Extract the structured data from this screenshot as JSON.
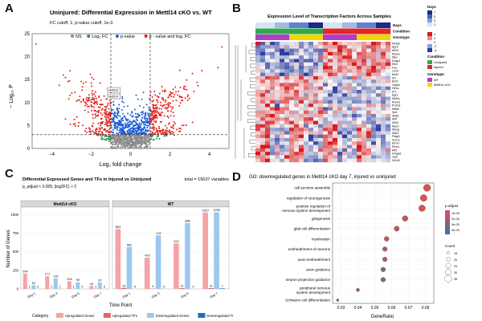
{
  "colors": {
    "ns": "#8c8c8c",
    "log2fc": "#2e8b57",
    "pval": "#1f5fd6",
    "both": "#e3221c",
    "up_genes": "#f4a3a6",
    "up_tfs": "#e06666",
    "down_genes": "#9cc8f0",
    "down_tfs": "#1f6fc0",
    "dot_low": "#3a6fb0",
    "dot_high": "#d9534f",
    "heat_low": "#2b3fa0",
    "heat_mid": "#f7f7f7",
    "heat_high": "#d7191c"
  },
  "panels": {
    "a": "A",
    "b": "B",
    "c": "C",
    "d": "D"
  },
  "chart_data": [
    {
      "panel": "A",
      "type": "scatter",
      "title": "Uninjured: Differential Expression in Mettl14 cKO vs. WT",
      "subtitle": "FC cutoff, 1; p-value cutoff, 1e-3",
      "legend": [
        {
          "key": "ns",
          "label": "NS"
        },
        {
          "key": "log2fc",
          "label": "Log₂ FC"
        },
        {
          "key": "pval",
          "label": "p-value"
        },
        {
          "key": "both",
          "label": "p - value and log₂ FC"
        }
      ],
      "xlabel": "Log₂ fold change",
      "ylabel": "− Log₁₀ P",
      "xlim": [
        -5,
        5
      ],
      "ylim": [
        0,
        25
      ],
      "xticks": [
        -4,
        -2,
        0,
        2,
        4
      ],
      "yticks": [
        0,
        5,
        10,
        15,
        20,
        25
      ],
      "fc_cutoff": 1,
      "p_cutoff_log10": 3,
      "highlight_labels": [
        "Mettl14",
        "Mettl14"
      ],
      "points": []
    },
    {
      "panel": "B",
      "type": "heatmap",
      "title": "Expression Level of Transcription Factors Across Samples",
      "row_labels": [
        "Nr4a2",
        "Egr3",
        "Klf10",
        "Ppara",
        "Myc",
        "Dusp1",
        "Elk4",
        "Fos",
        "Lhx4",
        "Mef2",
        "Srf",
        "Etv5",
        "Gata4",
        "Hif1a",
        "Irf7",
        "Egr1",
        "Mef2c",
        "Runx1",
        "Prdm1",
        "Nfat5",
        "Sp4",
        "Stat6",
        "Mitf",
        "Zeb2",
        "Mycn",
        "Myog",
        "Stat1",
        "Plagl1",
        "Sox11",
        "Emx1",
        "Pms1",
        "Atf3",
        "Hmga1",
        "Tcf3",
        "Nr1d4"
      ],
      "n_columns": 28,
      "annotations": [
        {
          "name": "Days",
          "levels": [
            "0",
            "7"
          ]
        },
        {
          "name": "Condition",
          "levels": [
            "Uninjured",
            "Injured"
          ]
        },
        {
          "name": "Genotype",
          "levels": [
            "WT",
            "Mettl14 cKO"
          ]
        }
      ],
      "legend_title": "Days",
      "legend_ticks": [
        "7",
        "5",
        "3",
        "1"
      ],
      "scale_ticks": [
        "4",
        "2",
        "0",
        "-2",
        "-4"
      ],
      "condition_legend_title": "Condition",
      "genotype_legend_title": "Genotype"
    },
    {
      "panel": "C",
      "type": "bar",
      "title": "Differential Expressed Genes and TFs in Injured vs Uninjured",
      "subtitle": "p_adjust < 0.005, |log2FC| > 2",
      "note": "total = 15637 variables",
      "facets": [
        "Mettl14 cKO",
        "WT"
      ],
      "ylabel": "Number of Genes",
      "xlabel": "Time Point",
      "ylim": [
        0,
        1100
      ],
      "categories": [
        "Day 1",
        "Day 3",
        "Day 5",
        "Day 7"
      ],
      "series": [
        {
          "name": "Upregulated Genes",
          "key": "up_genes",
          "cKO": [
            204,
            171,
            104,
            40
          ],
          "WT": [
            804,
            420,
            612,
            1027
          ]
        },
        {
          "name": "Upregulated TFs",
          "key": "up_tfs",
          "cKO": [
            1,
            1,
            1,
            1
          ],
          "WT": [
            13,
            3,
            11,
            11
          ]
        },
        {
          "name": "Downregulated Genes",
          "key": "down_genes",
          "cKO": [
            51,
            142,
            90,
            87
          ],
          "WT": [
            562,
            719,
            886,
            1030
          ]
        },
        {
          "name": "Downregulated TFs",
          "key": "down_tfs",
          "cKO": [
            0,
            1,
            0,
            0
          ],
          "WT": [
            0,
            0,
            0,
            7
          ]
        }
      ],
      "legend_title": "Category"
    },
    {
      "panel": "D",
      "type": "scatter",
      "title": "GO: downregulated genes in Mettl14 cKO day 7, injured vs uninjured",
      "xlabel": "GeneRatio",
      "xlim": [
        0.025,
        0.085
      ],
      "xticks": [
        0.03,
        0.04,
        0.05,
        0.06,
        0.07,
        0.08
      ],
      "terms": [
        "cell junction assembly",
        "regulation of neurogenesis",
        "positive regulation of nervous system development",
        "gliogenesis",
        "glial cell differentiation",
        "myelination",
        "ensheathment of neurons",
        "axon ensheathment",
        "axon guidance",
        "neuron projection guidance",
        "peripheral nervous system development",
        "Schwann cell differentiation"
      ],
      "gene_ratio": [
        0.081,
        0.079,
        0.078,
        0.068,
        0.063,
        0.057,
        0.056,
        0.056,
        0.055,
        0.055,
        0.04,
        0.028
      ],
      "count": [
        35,
        33,
        32,
        28,
        26,
        24,
        23,
        23,
        23,
        23,
        17,
        12
      ],
      "p_adjust": [
        1e-06,
        1e-06,
        2e-06,
        3e-06,
        4e-06,
        6e-06,
        7e-06,
        7e-06,
        1.3e-05,
        1.3e-05,
        9e-06,
        2.4e-05
      ],
      "color_legend_title": "p.adjust",
      "color_legend_ticks": [
        "1e-05",
        "2e-05",
        "3e-05",
        "4e-05"
      ],
      "size_legend_title": "Count",
      "size_legend_values": [
        15,
        20,
        25,
        30,
        35
      ]
    }
  ]
}
